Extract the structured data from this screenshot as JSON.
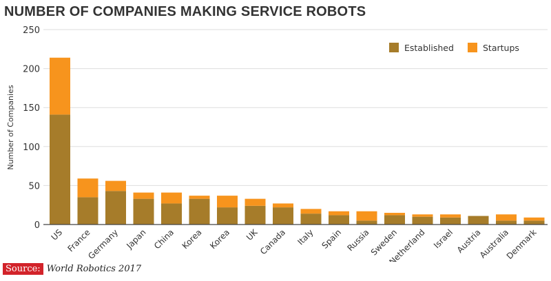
{
  "chart_data": {
    "type": "bar",
    "stacked": true,
    "title": "NUMBER OF COMPANIES MAKING SERVICE ROBOTS",
    "xlabel": "",
    "ylabel": "Number of Companies",
    "ylim": [
      0,
      250
    ],
    "yticks": [
      0,
      50,
      100,
      150,
      200,
      250
    ],
    "grid": true,
    "legend_position": "top-right",
    "categories": [
      "US",
      "France",
      "Germany",
      "Japan",
      "China",
      "Korea",
      "Korea",
      "UK",
      "Canada",
      "Italy",
      "Spain",
      "Russia",
      "Sweden",
      "Netherland",
      "Israel",
      "Austria",
      "Australia",
      "Denmark"
    ],
    "series": [
      {
        "name": "Established",
        "color": "#a67c2a",
        "values": [
          141,
          35,
          43,
          33,
          27,
          33,
          22,
          24,
          22,
          14,
          12,
          5,
          12,
          10,
          9,
          11,
          5,
          5
        ]
      },
      {
        "name": "Startups",
        "color": "#f7941d",
        "values": [
          73,
          24,
          13,
          8,
          14,
          4,
          15,
          9,
          5,
          6,
          5,
          12,
          3,
          3,
          4,
          0,
          8,
          4
        ]
      }
    ]
  },
  "source": {
    "label": "Source:",
    "text": "World Robotics 2017"
  }
}
